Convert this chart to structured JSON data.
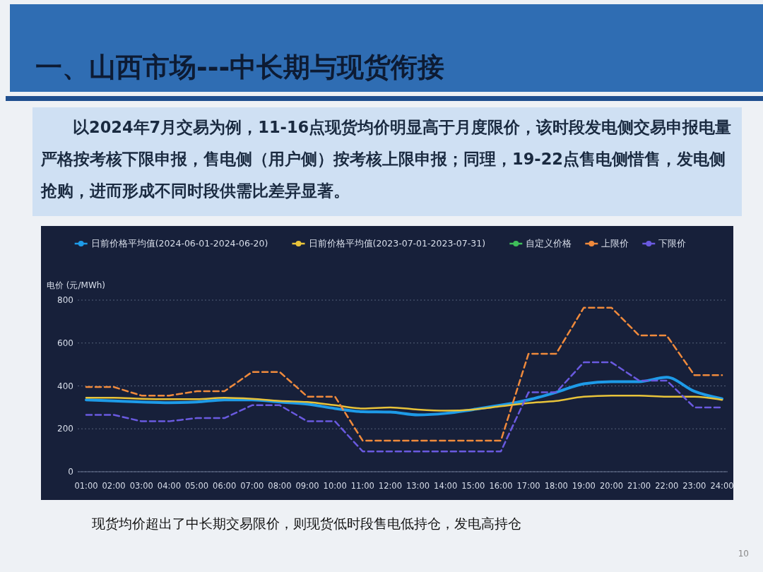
{
  "chart_data": {
    "type": "line",
    "title": "一、山西市场---中长期与现货衔接",
    "ylabel": "电价 (元/MWh)",
    "annotations": [
      "以2024年7月交易为例，11-16点现货均价明显高于月度限价，该时段发电侧交易申报电量严格按考核下限申报，售电侧（用户侧）按考核上限申报；同理，19-22点售电侧惜售，发电侧抢购，进而形成不同时段供需比差异显著。",
      "现货均价超出了中长期交易限价，则现货低时段售电低持仓，发电高持仓",
      "10"
    ],
    "categories": [
      "01:00",
      "02:00",
      "03:00",
      "04:00",
      "05:00",
      "06:00",
      "07:00",
      "08:00",
      "09:00",
      "10:00",
      "11:00",
      "12:00",
      "13:00",
      "14:00",
      "15:00",
      "16:00",
      "17:00",
      "18:00",
      "19:00",
      "20:00",
      "21:00",
      "22:00",
      "23:00",
      "24:00"
    ],
    "series": [
      {
        "name": "日前价格平均值(2024-06-01-2024-06-20)",
        "color": "#1e9be8",
        "line_style": "solid",
        "values": [
          335,
          330,
          325,
          322,
          325,
          335,
          335,
          325,
          315,
          295,
          280,
          278,
          265,
          272,
          290,
          310,
          335,
          370,
          410,
          420,
          420,
          440,
          375,
          340
        ]
      },
      {
        "name": "日前价格平均值(2023-07-01-2023-07-31)",
        "color": "#e8c33a",
        "line_style": "solid",
        "values": [
          345,
          345,
          340,
          338,
          338,
          345,
          340,
          330,
          325,
          310,
          295,
          300,
          290,
          285,
          290,
          305,
          320,
          330,
          350,
          355,
          355,
          350,
          350,
          335
        ]
      },
      {
        "name": "自定义价格",
        "color": "#3fbf5a",
        "line_style": "solid",
        "values": [
          null,
          null,
          null,
          null,
          null,
          null,
          null,
          null,
          null,
          null,
          null,
          null,
          null,
          null,
          null,
          null,
          null,
          null,
          null,
          null,
          null,
          null,
          null,
          null
        ]
      },
      {
        "name": "上限价",
        "color": "#f08a3c",
        "line_style": "dashed",
        "values": [
          395,
          395,
          355,
          355,
          375,
          375,
          465,
          465,
          350,
          350,
          145,
          145,
          145,
          145,
          145,
          145,
          550,
          550,
          765,
          765,
          635,
          635,
          450,
          450
        ]
      },
      {
        "name": "下限价",
        "color": "#6a5ae0",
        "line_style": "dashed",
        "values": [
          265,
          265,
          235,
          235,
          250,
          250,
          310,
          310,
          235,
          235,
          95,
          95,
          95,
          95,
          95,
          95,
          370,
          370,
          510,
          510,
          425,
          425,
          300,
          300
        ]
      }
    ],
    "ylim": [
      0,
      800
    ],
    "yticks": [
      0,
      200,
      400,
      600,
      800
    ],
    "grid": "y",
    "legend": "top",
    "marker": "none"
  }
}
